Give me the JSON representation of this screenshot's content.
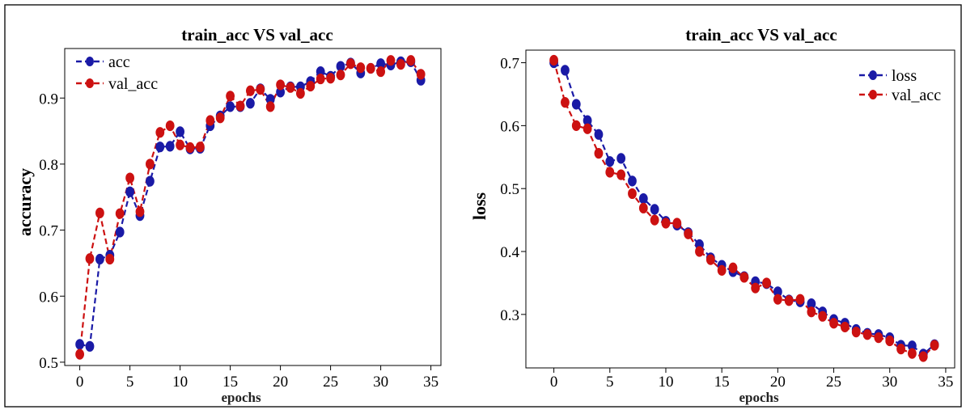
{
  "chart_data": [
    {
      "type": "line",
      "title": "train_acc VS val_acc",
      "xlabel": "epochs",
      "ylabel": "accuracy",
      "xlim": [
        -1.5,
        36
      ],
      "ylim": [
        0.495,
        0.975
      ],
      "x_ticks": [
        "0",
        "5",
        "10",
        "15",
        "20",
        "25",
        "30",
        "35"
      ],
      "y_ticks": [
        "0.5",
        "0.6",
        "0.7",
        "0.8",
        "0.9"
      ],
      "legend_position": "top-left",
      "grid": false,
      "x": [
        0,
        1,
        2,
        3,
        4,
        5,
        6,
        7,
        8,
        9,
        10,
        11,
        12,
        13,
        14,
        15,
        16,
        17,
        18,
        19,
        20,
        21,
        22,
        23,
        24,
        25,
        26,
        27,
        28,
        29,
        30,
        31,
        32,
        33,
        34
      ],
      "series": [
        {
          "name": "acc",
          "color": "#1a1aa6",
          "values": [
            0.527,
            0.524,
            0.656,
            0.662,
            0.697,
            0.758,
            0.722,
            0.774,
            0.826,
            0.827,
            0.849,
            0.823,
            0.824,
            0.858,
            0.873,
            0.887,
            0.887,
            0.892,
            0.914,
            0.898,
            0.909,
            0.917,
            0.917,
            0.925,
            0.94,
            0.933,
            0.948,
            0.953,
            0.938,
            0.945,
            0.952,
            0.95,
            0.955,
            0.955,
            0.927
          ]
        },
        {
          "name": "val_acc",
          "color": "#cc1111",
          "values": [
            0.512,
            0.657,
            0.726,
            0.656,
            0.725,
            0.779,
            0.728,
            0.8,
            0.848,
            0.858,
            0.829,
            0.825,
            0.826,
            0.866,
            0.87,
            0.903,
            0.888,
            0.911,
            0.913,
            0.887,
            0.92,
            0.916,
            0.907,
            0.918,
            0.929,
            0.93,
            0.935,
            0.952,
            0.946,
            0.945,
            0.94,
            0.957,
            0.951,
            0.957,
            0.936
          ]
        }
      ]
    },
    {
      "type": "line",
      "title": "train_acc VS val_acc",
      "xlabel": "epochs",
      "ylabel": "loss",
      "xlim": [
        -2.5,
        35.8
      ],
      "ylim": [
        0.215,
        0.72
      ],
      "x_ticks": [
        "0",
        "5",
        "10",
        "15",
        "20",
        "25",
        "30",
        "35"
      ],
      "y_ticks": [
        "0.3",
        "0.4",
        "0.5",
        "0.6",
        "0.7"
      ],
      "legend_position": "top-right",
      "grid": false,
      "x": [
        0,
        1,
        2,
        3,
        4,
        5,
        6,
        7,
        8,
        9,
        10,
        11,
        12,
        13,
        14,
        15,
        16,
        17,
        18,
        19,
        20,
        21,
        22,
        23,
        24,
        25,
        26,
        27,
        28,
        29,
        30,
        31,
        32,
        33,
        34
      ],
      "series": [
        {
          "name": "loss",
          "color": "#1a1aa6",
          "values": [
            0.7,
            0.688,
            0.634,
            0.608,
            0.586,
            0.543,
            0.548,
            0.512,
            0.484,
            0.467,
            0.448,
            0.442,
            0.43,
            0.411,
            0.39,
            0.378,
            0.368,
            0.36,
            0.352,
            0.349,
            0.336,
            0.323,
            0.32,
            0.317,
            0.304,
            0.292,
            0.286,
            0.276,
            0.27,
            0.268,
            0.263,
            0.251,
            0.25,
            0.237,
            0.252
          ]
        },
        {
          "name": "val_acc",
          "color": "#cc1111",
          "values": [
            0.704,
            0.637,
            0.6,
            0.595,
            0.556,
            0.526,
            0.522,
            0.492,
            0.469,
            0.45,
            0.445,
            0.445,
            0.428,
            0.4,
            0.387,
            0.37,
            0.374,
            0.359,
            0.342,
            0.35,
            0.324,
            0.322,
            0.324,
            0.304,
            0.297,
            0.286,
            0.28,
            0.272,
            0.268,
            0.263,
            0.258,
            0.245,
            0.238,
            0.233,
            0.251
          ]
        }
      ]
    }
  ]
}
